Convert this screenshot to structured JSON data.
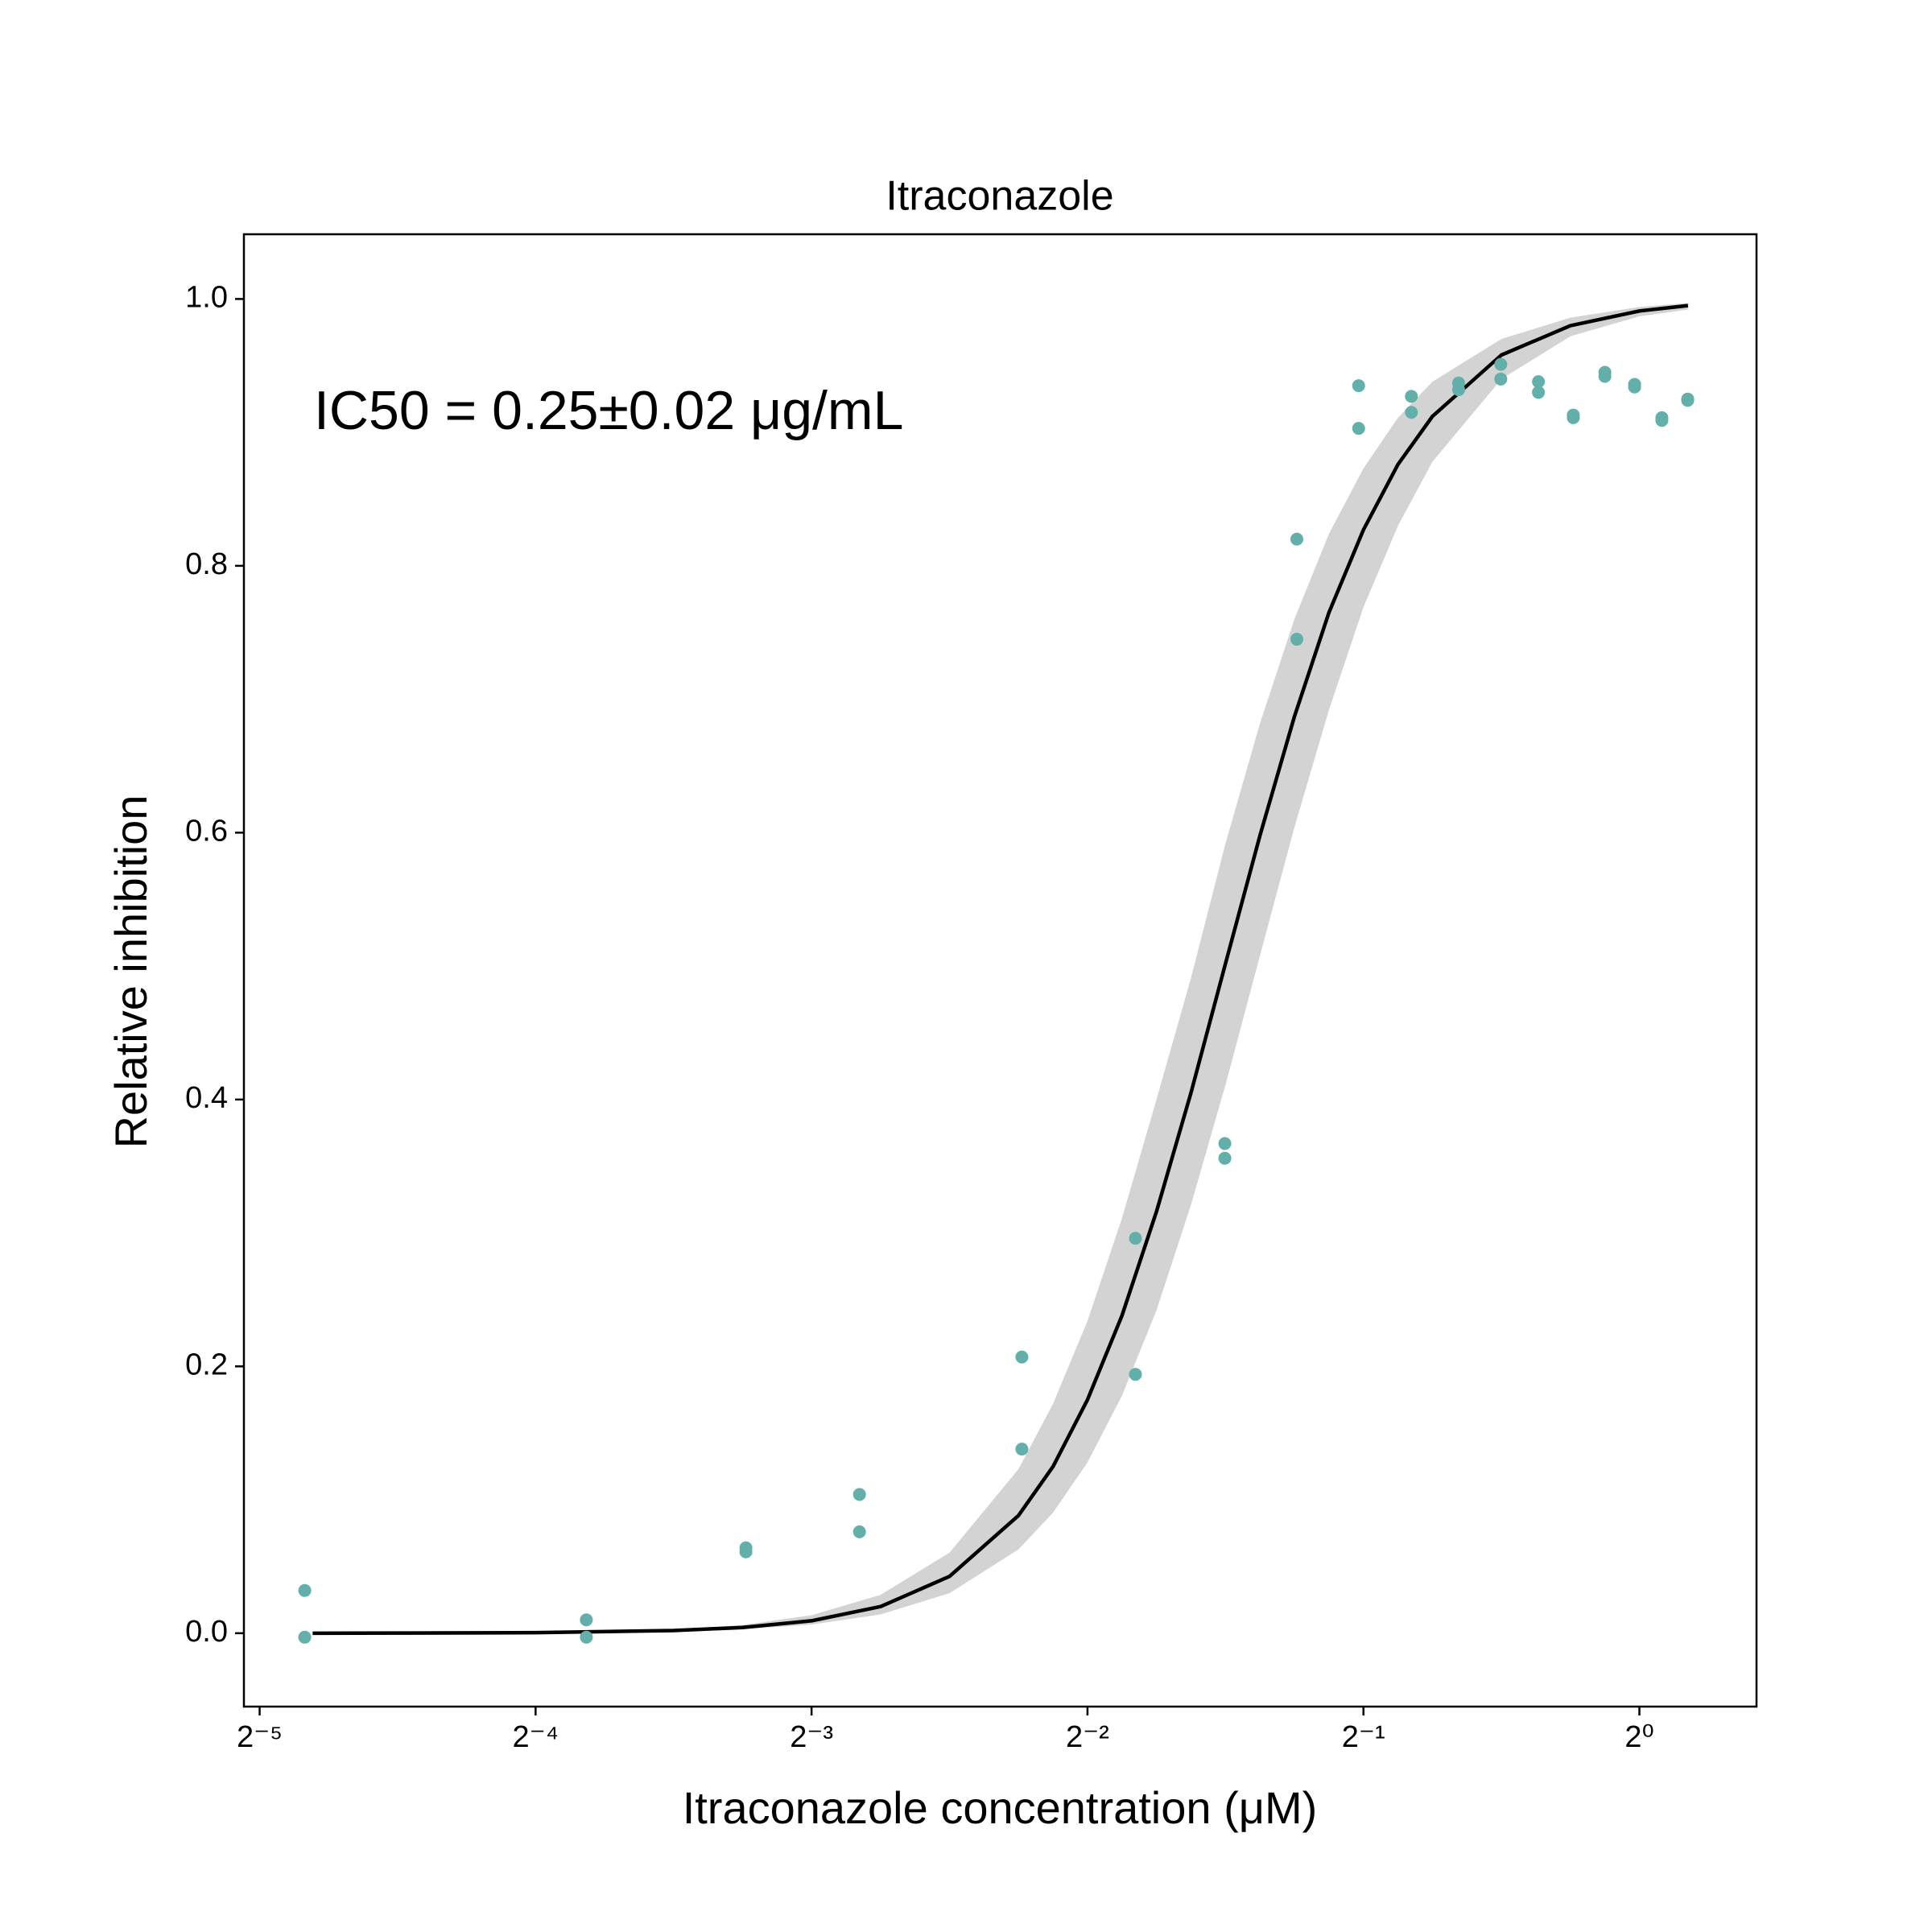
{
  "chart_data": {
    "type": "scatter",
    "title": "Itraconazole",
    "x_label": "Itraconazole concentration (μM)",
    "y_label": "Relative inhibition",
    "annotation": "IC50 = 0.25±0.02 μg/mL",
    "xscale": "log2",
    "xlim": [
      0.03004,
      1.342
    ],
    "xticks": [
      {
        "value": 0.03125,
        "label": "2⁻⁵"
      },
      {
        "value": 0.0625,
        "label": "2⁻⁴"
      },
      {
        "value": 0.125,
        "label": "2⁻³"
      },
      {
        "value": 0.25,
        "label": "2⁻²"
      },
      {
        "value": 0.5,
        "label": "2⁻¹"
      },
      {
        "value": 1,
        "label": "2⁰"
      }
    ],
    "ylim": [
      -0.055,
      1.0485
    ],
    "yticks": [
      {
        "value": 0,
        "label": "0.0"
      },
      0.2,
      0.4,
      0.6,
      0.8,
      {
        "value": 1,
        "label": "1.0"
      }
    ],
    "grid": false,
    "series": [
      {
        "type": "band",
        "color": "#d3d3d3",
        "x": [
          0.0357,
          0.0442,
          0.0625,
          0.0884,
          0.1051,
          0.125,
          0.1487,
          0.1768,
          0.2102,
          0.2293,
          0.25,
          0.2726,
          0.2973,
          0.3242,
          0.3536,
          0.3856,
          0.4204,
          0.4585,
          0.5,
          0.5453,
          0.5946,
          0.7071,
          0.8409,
          1,
          1.1298
        ],
        "lower": [
          0,
          0.0001,
          0.0003,
          0.0014,
          0.003,
          0.0065,
          0.0141,
          0.03,
          0.0628,
          0.0904,
          0.128,
          0.178,
          0.242,
          0.321,
          0.411,
          0.508,
          0.604,
          0.692,
          0.769,
          0.83,
          0.878,
          0.94,
          0.972,
          0.987,
          0.992
        ],
        "upper": [
          0,
          0.0001,
          0.0006,
          0.0028,
          0.0062,
          0.0135,
          0.0288,
          0.0604,
          0.123,
          0.172,
          0.234,
          0.311,
          0.4,
          0.491,
          0.592,
          0.682,
          0.76,
          0.824,
          0.873,
          0.911,
          0.938,
          0.97,
          0.986,
          0.994,
          0.997
        ]
      },
      {
        "type": "line",
        "color": "#000000",
        "x": [
          0.0357,
          0.0442,
          0.0625,
          0.0884,
          0.1051,
          0.125,
          0.1487,
          0.1768,
          0.2102,
          0.2293,
          0.25,
          0.2726,
          0.2973,
          0.3242,
          0.3536,
          0.3856,
          0.4204,
          0.4585,
          0.5,
          0.5453,
          0.5946,
          0.7071,
          0.8409,
          1,
          1.1298
        ],
        "values": [
          0,
          0.0001,
          0.0004,
          0.002,
          0.0043,
          0.0093,
          0.02,
          0.0426,
          0.0882,
          0.125,
          0.175,
          0.238,
          0.316,
          0.405,
          0.502,
          0.598,
          0.687,
          0.765,
          0.827,
          0.876,
          0.912,
          0.958,
          0.98,
          0.991,
          0.995
        ]
      },
      {
        "type": "scatter",
        "color": "#62b0a9",
        "x": [
          0.035,
          0.035,
          0.071,
          0.071,
          0.106,
          0.106,
          0.141,
          0.141,
          0.212,
          0.212,
          0.282,
          0.282,
          0.353,
          0.353,
          0.423,
          0.423,
          0.494,
          0.494,
          0.564,
          0.564,
          0.635,
          0.635,
          0.706,
          0.706,
          0.776,
          0.776,
          0.847,
          0.847,
          0.917,
          0.917,
          0.988,
          0.988,
          1.058,
          1.058,
          1.129,
          1.129
        ],
        "values": [
          0.032,
          -0.003,
          0.01,
          -0.003,
          0.064,
          0.061,
          0.104,
          0.076,
          0.207,
          0.138,
          0.296,
          0.194,
          0.367,
          0.356,
          0.82,
          0.745,
          0.935,
          0.903,
          0.927,
          0.915,
          0.937,
          0.932,
          0.951,
          0.94,
          0.938,
          0.93,
          0.913,
          0.911,
          0.945,
          0.942,
          0.936,
          0.934,
          0.911,
          0.909,
          0.925,
          0.924
        ]
      }
    ]
  }
}
